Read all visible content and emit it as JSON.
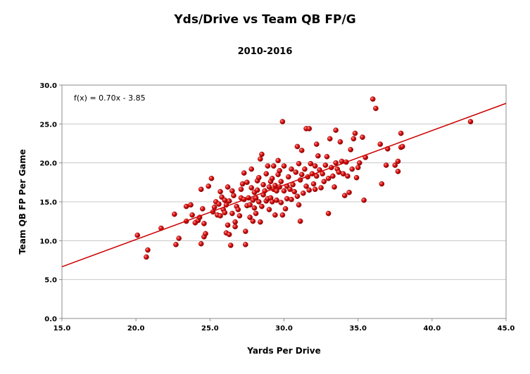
{
  "chart_data": {
    "type": "scatter",
    "title": "Yds/Drive vs Team QB FP/G",
    "subtitle": "2010-2016",
    "xlabel": "Yards Per Drive",
    "ylabel": "Team QB FP Per Game",
    "xlim": [
      15.0,
      45.0
    ],
    "ylim": [
      0.0,
      30.0
    ],
    "xticks": [
      "15.0",
      "20.0",
      "25.0",
      "30.0",
      "35.0",
      "40.0",
      "45.0"
    ],
    "yticks": [
      "0.0",
      "5.0",
      "10.0",
      "15.0",
      "20.0",
      "25.0",
      "30.0"
    ],
    "grid": "horizontal",
    "equation": "f(x) = 0.70x - 3.85",
    "trendline": {
      "slope": 0.7,
      "intercept": -3.85
    },
    "colors": {
      "point": "#cc0000",
      "trendline": "#cc0000",
      "grid": "#c8c8c8"
    },
    "points": [
      [
        20.1,
        10.7
      ],
      [
        20.7,
        7.9
      ],
      [
        20.8,
        8.8
      ],
      [
        21.7,
        11.6
      ],
      [
        22.6,
        13.4
      ],
      [
        22.7,
        9.5
      ],
      [
        22.9,
        10.3
      ],
      [
        23.4,
        12.5
      ],
      [
        23.4,
        14.4
      ],
      [
        23.7,
        14.6
      ],
      [
        23.8,
        13.3
      ],
      [
        24.0,
        12.3
      ],
      [
        24.2,
        12.6
      ],
      [
        24.3,
        13.0
      ],
      [
        24.4,
        9.6
      ],
      [
        24.4,
        16.6
      ],
      [
        24.5,
        14.1
      ],
      [
        24.6,
        12.2
      ],
      [
        24.6,
        10.5
      ],
      [
        24.7,
        10.9
      ],
      [
        24.9,
        17.0
      ],
      [
        25.1,
        18.0
      ],
      [
        25.2,
        13.7
      ],
      [
        25.3,
        14.3
      ],
      [
        25.4,
        15.0
      ],
      [
        25.5,
        13.3
      ],
      [
        25.6,
        14.7
      ],
      [
        25.7,
        16.3
      ],
      [
        25.7,
        13.2
      ],
      [
        25.8,
        15.6
      ],
      [
        25.9,
        14.0
      ],
      [
        26.0,
        15.2
      ],
      [
        26.0,
        13.6
      ],
      [
        26.1,
        14.6
      ],
      [
        26.1,
        11.0
      ],
      [
        26.2,
        12.0
      ],
      [
        26.2,
        16.9
      ],
      [
        26.3,
        15.1
      ],
      [
        26.3,
        10.8
      ],
      [
        26.4,
        9.4
      ],
      [
        26.5,
        13.5
      ],
      [
        26.5,
        16.4
      ],
      [
        26.6,
        15.8
      ],
      [
        26.7,
        12.4
      ],
      [
        26.7,
        11.8
      ],
      [
        26.8,
        14.4
      ],
      [
        26.9,
        14.0
      ],
      [
        27.0,
        13.2
      ],
      [
        27.1,
        15.5
      ],
      [
        27.1,
        16.6
      ],
      [
        27.2,
        17.3
      ],
      [
        27.3,
        15.3
      ],
      [
        27.3,
        18.7
      ],
      [
        27.4,
        11.2
      ],
      [
        27.4,
        9.5
      ],
      [
        27.5,
        17.5
      ],
      [
        27.5,
        14.5
      ],
      [
        27.6,
        15.5
      ],
      [
        27.7,
        13.0
      ],
      [
        27.7,
        14.6
      ],
      [
        27.8,
        16.8
      ],
      [
        27.8,
        19.2
      ],
      [
        27.9,
        12.5
      ],
      [
        27.9,
        15.2
      ],
      [
        28.0,
        16.2
      ],
      [
        28.0,
        14.2
      ],
      [
        28.1,
        15.5
      ],
      [
        28.1,
        13.5
      ],
      [
        28.2,
        17.7
      ],
      [
        28.2,
        16.5
      ],
      [
        28.3,
        15.0
      ],
      [
        28.3,
        18.1
      ],
      [
        28.4,
        12.4
      ],
      [
        28.4,
        20.5
      ],
      [
        28.5,
        14.4
      ],
      [
        28.5,
        21.1
      ],
      [
        28.6,
        15.9
      ],
      [
        28.6,
        17.2
      ],
      [
        28.7,
        16.4
      ],
      [
        28.8,
        15.1
      ],
      [
        28.8,
        18.6
      ],
      [
        28.9,
        15.4
      ],
      [
        28.9,
        19.6
      ],
      [
        29.0,
        14.0
      ],
      [
        29.0,
        16.9
      ],
      [
        29.1,
        15.5
      ],
      [
        29.1,
        17.6
      ],
      [
        29.2,
        15.0
      ],
      [
        29.2,
        18.0
      ],
      [
        29.3,
        16.6
      ],
      [
        29.3,
        19.6
      ],
      [
        29.4,
        13.3
      ],
      [
        29.4,
        17.1
      ],
      [
        29.5,
        15.2
      ],
      [
        29.5,
        16.4
      ],
      [
        29.6,
        18.5
      ],
      [
        29.6,
        20.3
      ],
      [
        29.7,
        16.9
      ],
      [
        29.7,
        19.0
      ],
      [
        29.8,
        14.9
      ],
      [
        29.8,
        17.6
      ],
      [
        29.9,
        25.3
      ],
      [
        29.9,
        13.3
      ],
      [
        30.0,
        16.4
      ],
      [
        30.0,
        19.6
      ],
      [
        30.1,
        14.1
      ],
      [
        30.2,
        17.0
      ],
      [
        30.2,
        15.4
      ],
      [
        30.3,
        18.2
      ],
      [
        30.4,
        16.6
      ],
      [
        30.5,
        15.3
      ],
      [
        30.5,
        19.2
      ],
      [
        30.6,
        17.2
      ],
      [
        30.7,
        16.3
      ],
      [
        30.8,
        18.8
      ],
      [
        30.9,
        15.7
      ],
      [
        30.9,
        22.1
      ],
      [
        31.0,
        14.6
      ],
      [
        31.0,
        19.9
      ],
      [
        31.1,
        17.8
      ],
      [
        31.1,
        12.5
      ],
      [
        31.2,
        18.5
      ],
      [
        31.2,
        21.6
      ],
      [
        31.3,
        16.1
      ],
      [
        31.4,
        19.2
      ],
      [
        31.5,
        17.0
      ],
      [
        31.5,
        24.4
      ],
      [
        31.6,
        18.2
      ],
      [
        31.7,
        16.5
      ],
      [
        31.7,
        24.4
      ],
      [
        31.8,
        19.9
      ],
      [
        31.9,
        18.6
      ],
      [
        32.0,
        17.3
      ],
      [
        32.1,
        16.6
      ],
      [
        32.1,
        19.6
      ],
      [
        32.2,
        18.3
      ],
      [
        32.2,
        22.4
      ],
      [
        32.3,
        20.9
      ],
      [
        32.4,
        19.1
      ],
      [
        32.5,
        16.8
      ],
      [
        32.6,
        18.6
      ],
      [
        32.7,
        17.6
      ],
      [
        32.8,
        19.7
      ],
      [
        32.9,
        20.8
      ],
      [
        33.0,
        18.0
      ],
      [
        33.0,
        13.5
      ],
      [
        33.1,
        23.1
      ],
      [
        33.2,
        19.4
      ],
      [
        33.3,
        18.3
      ],
      [
        33.4,
        16.9
      ],
      [
        33.5,
        24.2
      ],
      [
        33.5,
        20.0
      ],
      [
        33.6,
        19.2
      ],
      [
        33.7,
        18.8
      ],
      [
        33.8,
        22.7
      ],
      [
        33.9,
        20.2
      ],
      [
        34.0,
        18.6
      ],
      [
        34.1,
        15.8
      ],
      [
        34.2,
        20.1
      ],
      [
        34.3,
        18.3
      ],
      [
        34.4,
        16.2
      ],
      [
        34.5,
        21.7
      ],
      [
        34.6,
        19.2
      ],
      [
        34.7,
        23.1
      ],
      [
        34.8,
        23.8
      ],
      [
        34.9,
        18.1
      ],
      [
        35.0,
        19.4
      ],
      [
        35.1,
        20.0
      ],
      [
        35.3,
        23.3
      ],
      [
        35.4,
        15.2
      ],
      [
        35.5,
        20.7
      ],
      [
        36.0,
        28.2
      ],
      [
        36.2,
        27.0
      ],
      [
        36.5,
        22.4
      ],
      [
        36.6,
        17.3
      ],
      [
        36.9,
        19.7
      ],
      [
        37.0,
        21.8
      ],
      [
        37.5,
        19.7
      ],
      [
        37.7,
        20.2
      ],
      [
        37.7,
        18.9
      ],
      [
        37.9,
        23.8
      ],
      [
        37.9,
        22.0
      ],
      [
        38.0,
        22.1
      ],
      [
        42.6,
        25.3
      ]
    ]
  }
}
